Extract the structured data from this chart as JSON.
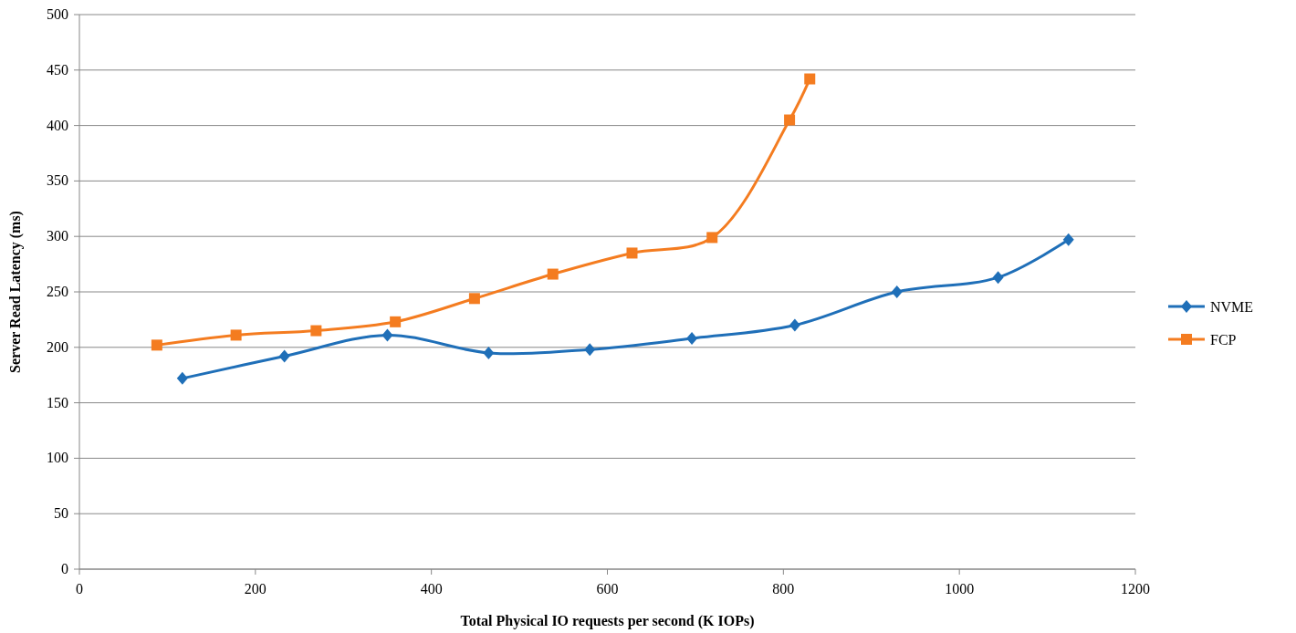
{
  "chart_data": {
    "type": "line",
    "xlabel": "Total Physical IO requests per second (K IOPs)",
    "ylabel": "Server Read Latency (ms)",
    "xlim": [
      0,
      1200
    ],
    "xticks": [
      0,
      200,
      400,
      600,
      800,
      1000,
      1200
    ],
    "ylim": [
      0,
      500
    ],
    "yticks": [
      0,
      50,
      100,
      150,
      200,
      250,
      300,
      350,
      400,
      450,
      500
    ],
    "grid": "y",
    "legend": "right",
    "series": [
      {
        "name": "NVME",
        "color": "#1f6fb8",
        "marker": "diamond",
        "x": [
          117,
          233,
          350,
          465,
          580,
          696,
          813,
          929,
          1044,
          1124
        ],
        "values": [
          172,
          192,
          211,
          195,
          198,
          208,
          220,
          250,
          263,
          297
        ]
      },
      {
        "name": "FCP",
        "color": "#f47c20",
        "marker": "square",
        "x": [
          88,
          178,
          269,
          359,
          449,
          538,
          628,
          719,
          807,
          830
        ],
        "values": [
          202,
          211,
          215,
          223,
          244,
          266,
          285,
          299,
          405,
          442
        ]
      }
    ]
  }
}
